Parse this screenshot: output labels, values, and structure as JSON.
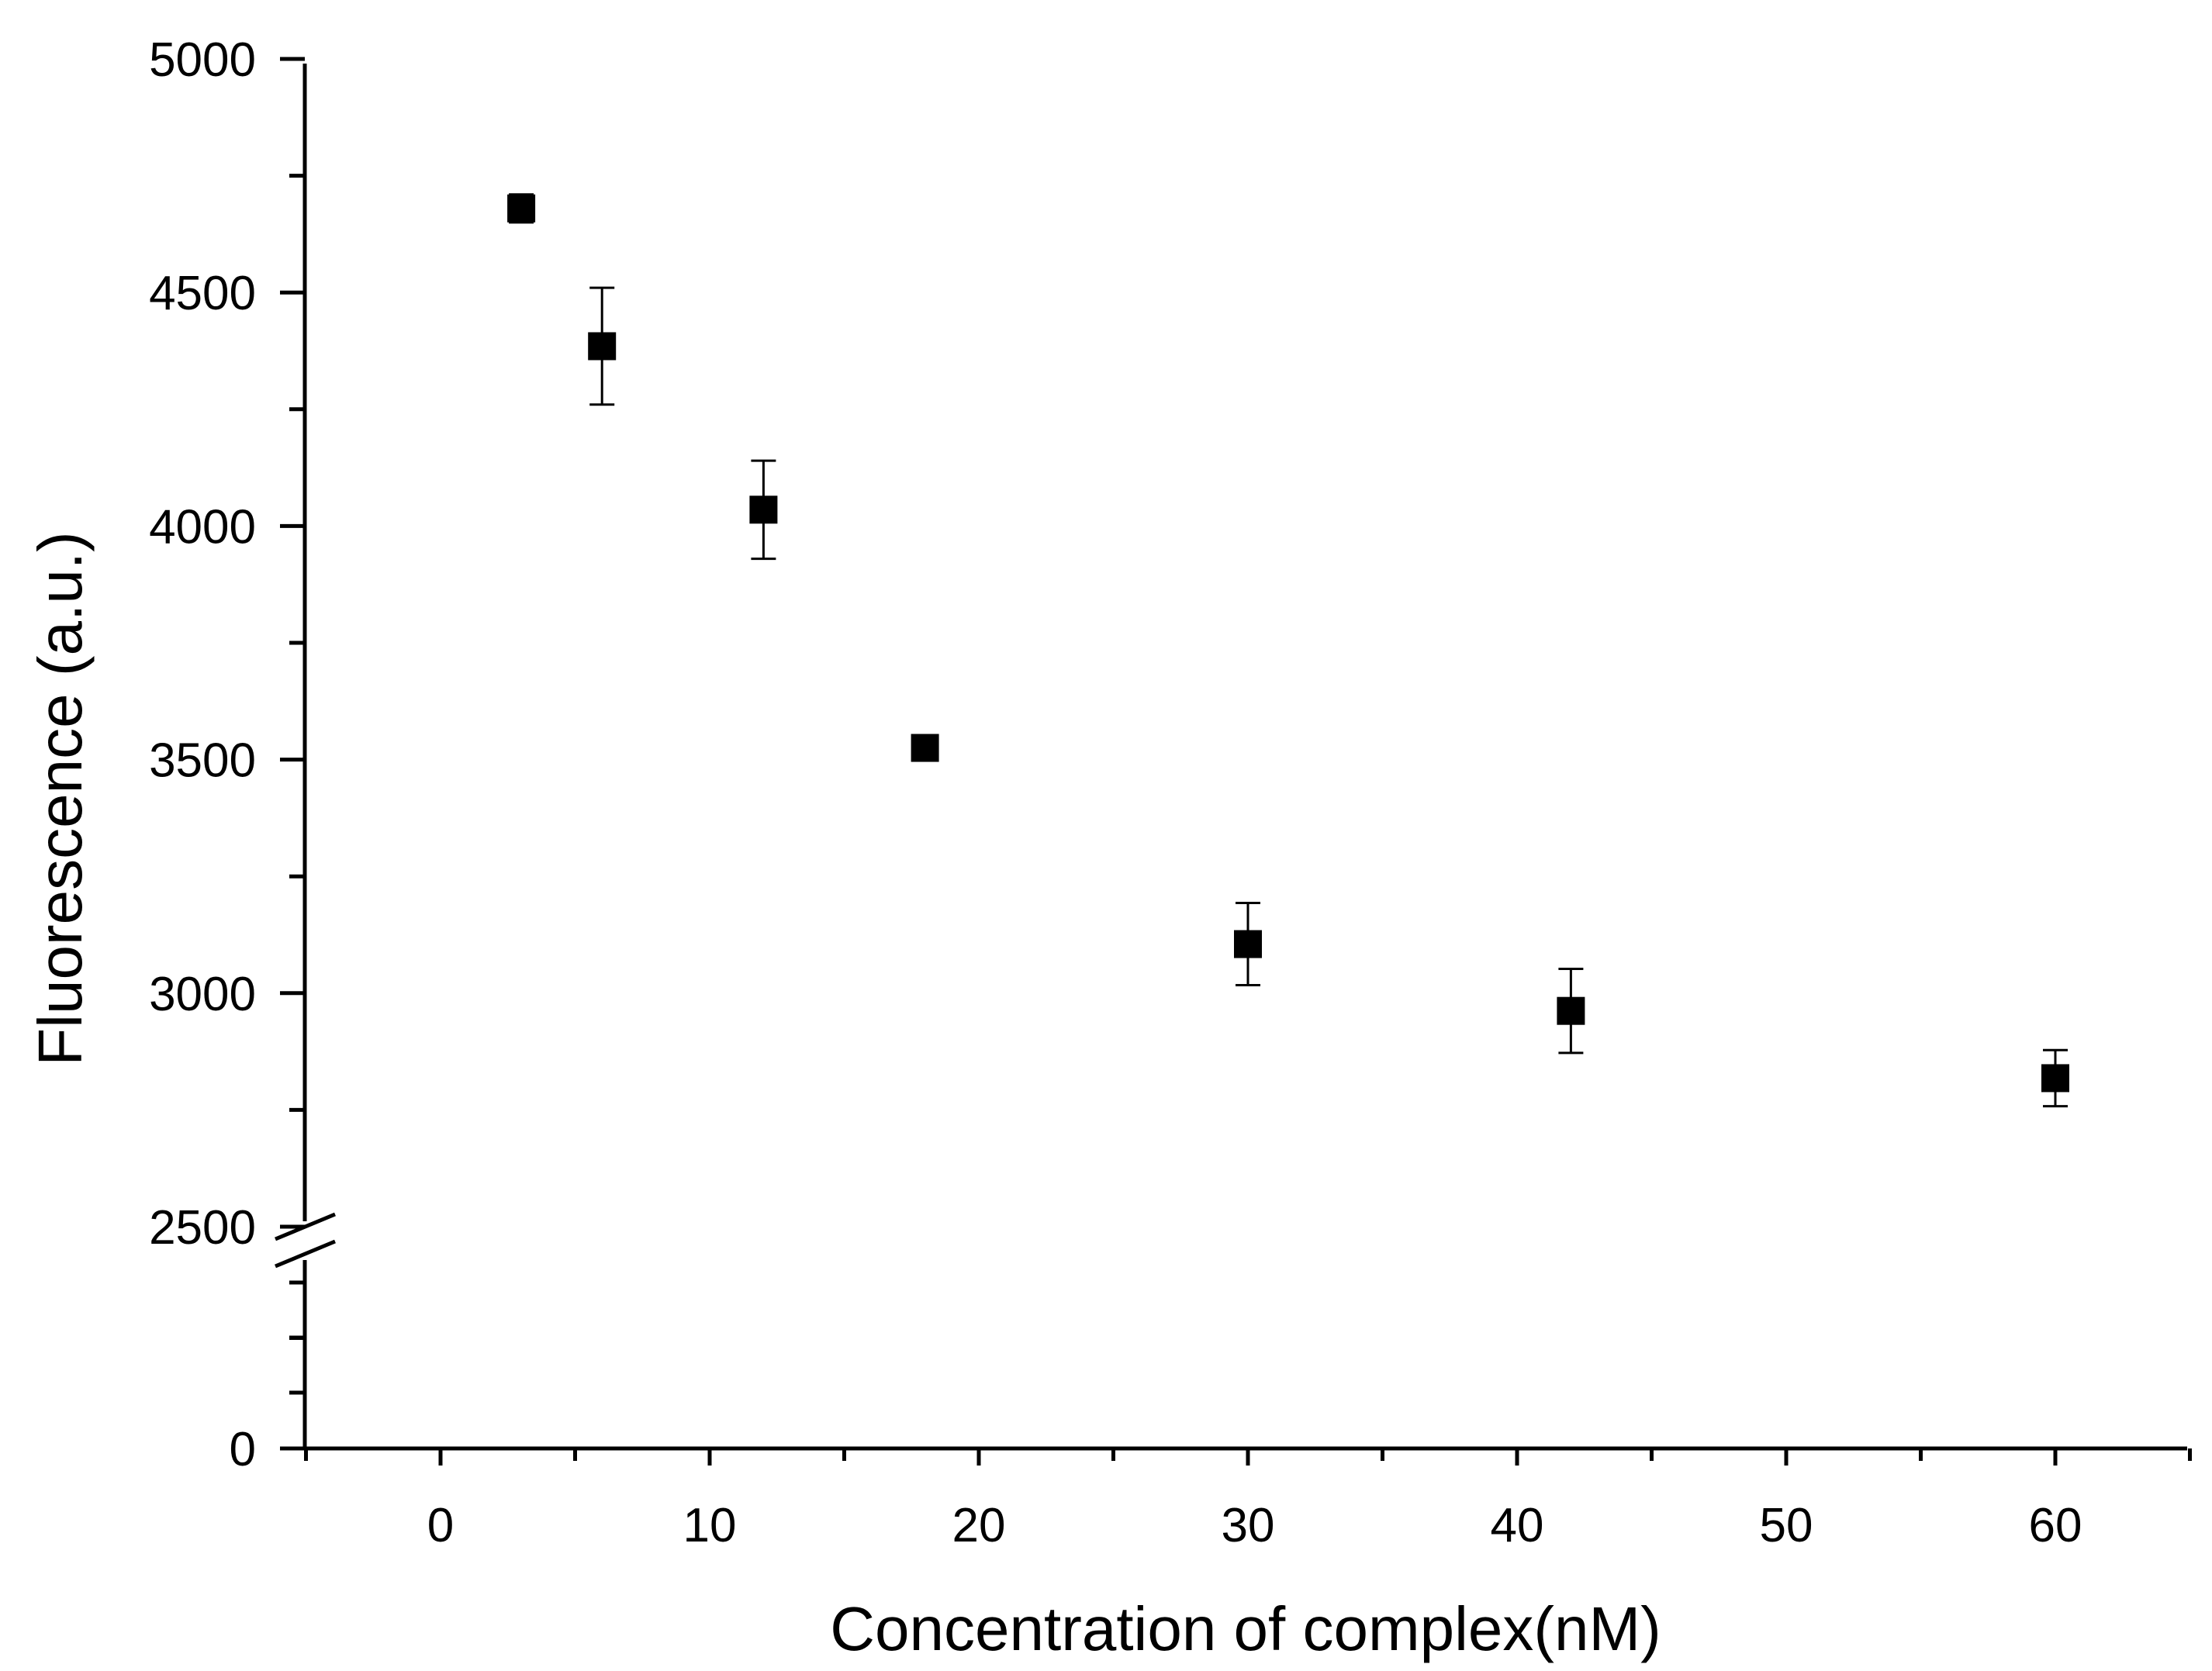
{
  "chart_data": {
    "type": "scatter",
    "title": "",
    "xlabel": "Concentration of complex(nM)",
    "ylabel": "Fluorescence (a.u.)",
    "xlim": [
      -5,
      65
    ],
    "ylim_lower_segment": [
      0,
      2500
    ],
    "ylim_upper_segment": [
      2500,
      5000
    ],
    "y_axis_break": 2500,
    "grid": false,
    "legend": "none",
    "x_ticks": [
      0,
      10,
      20,
      30,
      40,
      50,
      60
    ],
    "x_tick_labels": [
      "0",
      "10",
      "20",
      "30",
      "40",
      "50",
      "60"
    ],
    "y_ticks": [
      0,
      2500,
      3000,
      3500,
      4000,
      4500,
      5000
    ],
    "y_tick_labels": [
      "0",
      "2500",
      "3000",
      "3500",
      "4000",
      "4500",
      "5000"
    ],
    "marker": "filled-square",
    "marker_color": "#000000",
    "series": [
      {
        "x": [
          3,
          6,
          12,
          18,
          30,
          42,
          60
        ],
        "y": [
          4680,
          4385,
          4035,
          3525,
          3105,
          2962,
          2818
        ],
        "error": [
          30,
          125,
          105,
          20,
          88,
          90,
          60
        ]
      }
    ]
  }
}
